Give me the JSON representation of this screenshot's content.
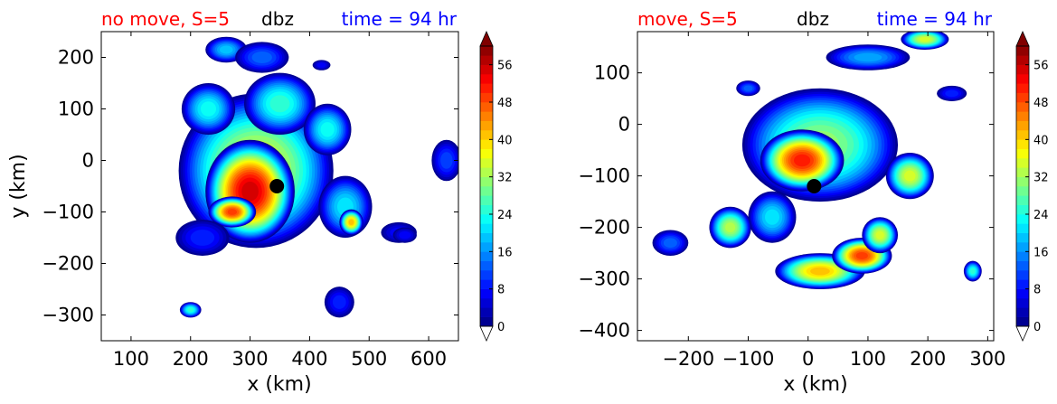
{
  "chart_data": [
    {
      "type": "contour",
      "title_left": "no move, S=5",
      "title_center": "dbz",
      "title_right": "time = 94 hr",
      "xlabel": "x (km)",
      "ylabel": "y (km)",
      "xlim": [
        50,
        650
      ],
      "ylim": [
        -350,
        250
      ],
      "xticks": [
        100,
        200,
        300,
        400,
        500,
        600
      ],
      "yticks": [
        -300,
        -200,
        -100,
        0,
        100,
        200
      ],
      "center_marker": {
        "x": 345,
        "y": -50
      },
      "blobs": [
        {
          "x": 310,
          "y": -20,
          "rx": 130,
          "ry": 150,
          "peak": 36
        },
        {
          "x": 300,
          "y": -60,
          "rx": 75,
          "ry": 100,
          "peak": 54
        },
        {
          "x": 270,
          "y": -100,
          "rx": 40,
          "ry": 30,
          "peak": 48
        },
        {
          "x": 350,
          "y": 110,
          "rx": 60,
          "ry": 60,
          "peak": 24
        },
        {
          "x": 230,
          "y": 100,
          "rx": 45,
          "ry": 50,
          "peak": 22
        },
        {
          "x": 260,
          "y": 215,
          "rx": 35,
          "ry": 25,
          "peak": 18
        },
        {
          "x": 320,
          "y": 200,
          "rx": 45,
          "ry": 30,
          "peak": 12
        },
        {
          "x": 430,
          "y": 60,
          "rx": 40,
          "ry": 50,
          "peak": 22
        },
        {
          "x": 460,
          "y": -90,
          "rx": 45,
          "ry": 60,
          "peak": 20
        },
        {
          "x": 470,
          "y": -120,
          "rx": 20,
          "ry": 25,
          "peak": 40
        },
        {
          "x": 220,
          "y": -150,
          "rx": 45,
          "ry": 35,
          "peak": 8
        },
        {
          "x": 630,
          "y": 0,
          "rx": 25,
          "ry": 40,
          "peak": 10
        },
        {
          "x": 200,
          "y": -290,
          "rx": 18,
          "ry": 15,
          "peak": 24
        },
        {
          "x": 450,
          "y": -275,
          "rx": 25,
          "ry": 30,
          "peak": 8
        },
        {
          "x": 550,
          "y": -140,
          "rx": 30,
          "ry": 20,
          "peak": 6
        },
        {
          "x": 420,
          "y": 185,
          "rx": 15,
          "ry": 10,
          "peak": 6
        },
        {
          "x": 560,
          "y": -145,
          "rx": 20,
          "ry": 15,
          "peak": 6
        }
      ]
    },
    {
      "type": "contour",
      "title_left": "move, S=5",
      "title_center": "dbz",
      "title_right": "time = 94 hr",
      "xlabel": "x (km)",
      "ylabel": "",
      "xlim": [
        -285,
        310
      ],
      "ylim": [
        -420,
        180
      ],
      "xticks": [
        -200,
        -100,
        0,
        100,
        200,
        300
      ],
      "yticks": [
        -400,
        -300,
        -200,
        -100,
        0,
        100
      ],
      "center_marker": {
        "x": 10,
        "y": -120
      },
      "blobs": [
        {
          "x": 20,
          "y": -40,
          "rx": 130,
          "ry": 110,
          "peak": 30
        },
        {
          "x": -10,
          "y": -70,
          "rx": 70,
          "ry": 60,
          "peak": 50
        },
        {
          "x": 170,
          "y": -100,
          "rx": 40,
          "ry": 45,
          "peak": 34
        },
        {
          "x": -60,
          "y": -180,
          "rx": 40,
          "ry": 50,
          "peak": 20
        },
        {
          "x": -130,
          "y": -200,
          "rx": 35,
          "ry": 40,
          "peak": 32
        },
        {
          "x": -230,
          "y": -230,
          "rx": 30,
          "ry": 25,
          "peak": 12
        },
        {
          "x": 20,
          "y": -285,
          "rx": 75,
          "ry": 35,
          "peak": 40
        },
        {
          "x": 90,
          "y": -255,
          "rx": 50,
          "ry": 35,
          "peak": 48
        },
        {
          "x": 120,
          "y": -215,
          "rx": 30,
          "ry": 35,
          "peak": 34
        },
        {
          "x": 275,
          "y": -285,
          "rx": 15,
          "ry": 20,
          "peak": 24
        },
        {
          "x": 100,
          "y": 130,
          "rx": 70,
          "ry": 25,
          "peak": 16
        },
        {
          "x": 195,
          "y": 165,
          "rx": 40,
          "ry": 20,
          "peak": 34
        },
        {
          "x": -100,
          "y": 70,
          "rx": 20,
          "ry": 15,
          "peak": 12
        },
        {
          "x": 240,
          "y": 60,
          "rx": 25,
          "ry": 15,
          "peak": 8
        }
      ]
    }
  ],
  "colorbar": {
    "min": 0,
    "max": 60,
    "step": 2,
    "tick_labels": [
      "0",
      "8",
      "16",
      "24",
      "32",
      "40",
      "48",
      "56"
    ],
    "extend": "both"
  },
  "colors": {
    "title_left": "#ff0000",
    "title_center": "#000000",
    "title_right": "#0000ff"
  }
}
